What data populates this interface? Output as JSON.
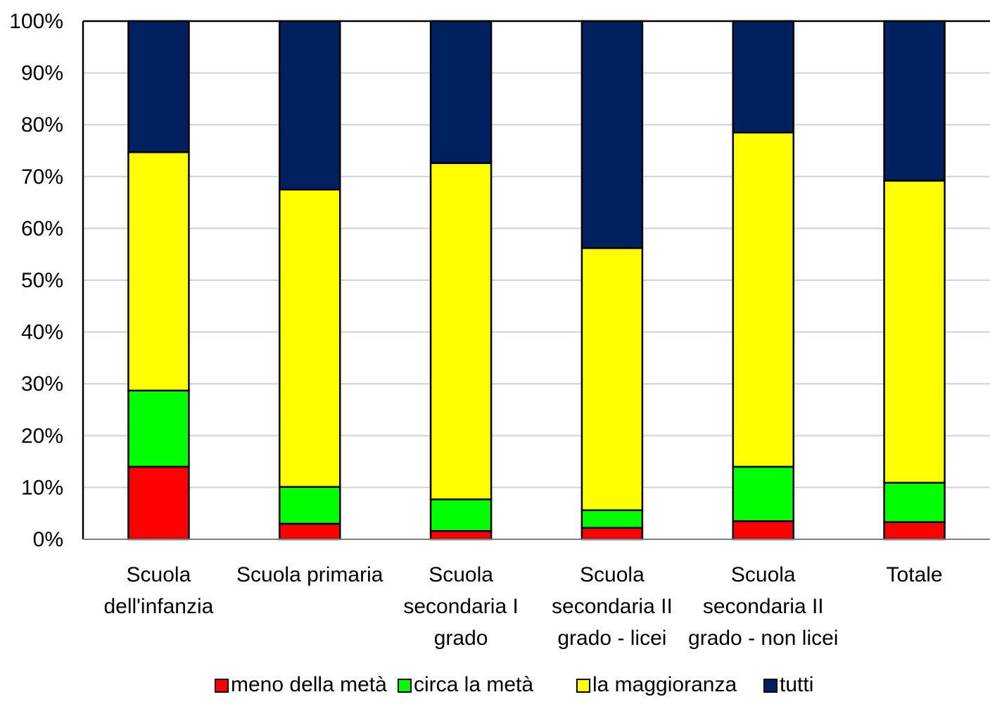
{
  "chart_data": {
    "type": "bar",
    "stacked": true,
    "percent_stacked": true,
    "categories": [
      [
        "Scuola",
        "dell'infanzia"
      ],
      [
        "Scuola primaria"
      ],
      [
        "Scuola",
        "secondaria I",
        "grado"
      ],
      [
        "Scuola",
        "secondaria II",
        "grado - licei"
      ],
      [
        "Scuola",
        "secondaria II",
        "grado - non licei"
      ],
      [
        "Totale"
      ]
    ],
    "series": [
      {
        "name": "meno della metà",
        "color": "#ff0000",
        "values": [
          14.0,
          3.0,
          1.6,
          2.2,
          3.5,
          3.3
        ]
      },
      {
        "name": "circa la metà",
        "color": "#00ff00",
        "values": [
          14.7,
          7.1,
          6.1,
          3.4,
          10.5,
          7.6
        ]
      },
      {
        "name": "la maggioranza",
        "color": "#ffff00",
        "values": [
          46.0,
          57.4,
          64.9,
          50.6,
          64.5,
          58.3
        ]
      },
      {
        "name": "tutti",
        "color": "#002060",
        "values": [
          25.3,
          32.5,
          27.4,
          43.8,
          21.5,
          30.8
        ]
      }
    ],
    "yticks": [
      "0%",
      "10%",
      "20%",
      "30%",
      "40%",
      "50%",
      "60%",
      "70%",
      "80%",
      "90%",
      "100%"
    ],
    "ylim": [
      0,
      100
    ],
    "grid": true,
    "legend_position": "bottom",
    "title": "",
    "xlabel": "",
    "ylabel": ""
  }
}
